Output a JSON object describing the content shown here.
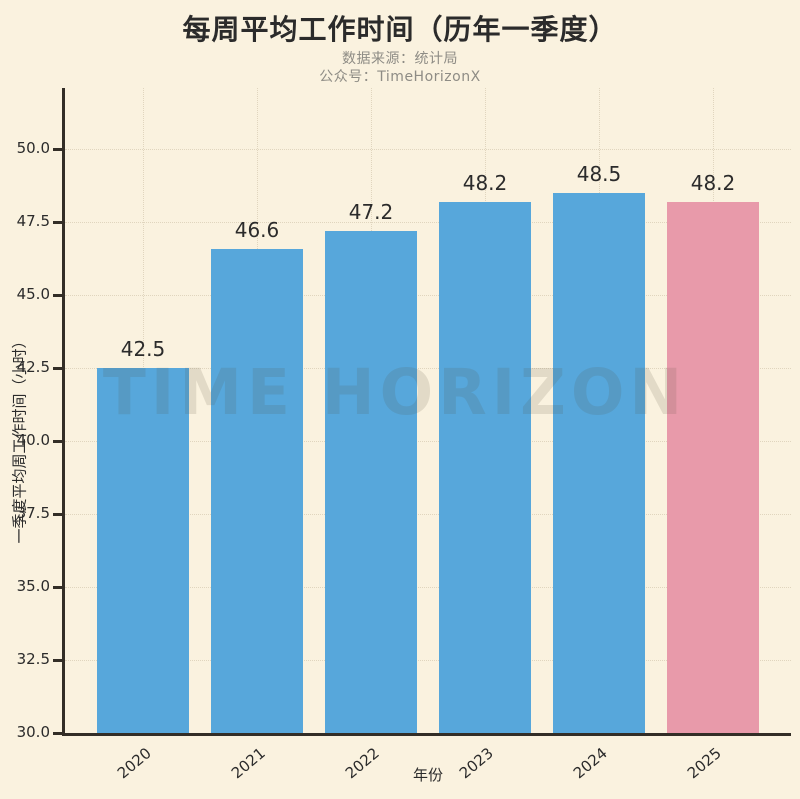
{
  "header": {
    "title": "每周平均工作时间（历年一季度）",
    "source_line": "数据来源：统计局",
    "account_line": "公众号：TimeHorizonX"
  },
  "watermark_text": "TIME HORIZON",
  "colors": {
    "background": "#FAF2DF",
    "bar_default": "#57A7DB",
    "bar_highlight": "#E89AAA",
    "axis_text": "#2B2B2B",
    "subtitle_text": "#8E8C85",
    "spine": "#332E27",
    "gridline": "#E0D5BE"
  },
  "chart_data": {
    "type": "bar",
    "title": "每周平均工作时间（历年一季度）",
    "categories": [
      "2020",
      "2021",
      "2022",
      "2023",
      "2024",
      "2025"
    ],
    "values": [
      42.5,
      46.6,
      47.2,
      48.2,
      48.5,
      48.2
    ],
    "value_labels": [
      "42.5",
      "46.6",
      "47.2",
      "48.2",
      "48.5",
      "48.2"
    ],
    "bar_colors": [
      "#57A7DB",
      "#57A7DB",
      "#57A7DB",
      "#57A7DB",
      "#57A7DB",
      "#E89AAA"
    ],
    "highlight_index": 5,
    "xlabel": "年份",
    "ylabel": "一季度平均周工作时间（小时）",
    "ylim": [
      30,
      52.1
    ],
    "yticks": [
      30.0,
      32.5,
      35.0,
      37.5,
      40.0,
      42.5,
      45.0,
      47.5,
      50.0
    ],
    "ytick_labels": [
      "30.0",
      "32.5",
      "35.0",
      "37.5",
      "40.0",
      "42.5",
      "45.0",
      "47.5",
      "50.0"
    ],
    "grid": true,
    "grid_style": "dotted",
    "legend_position": "none"
  }
}
